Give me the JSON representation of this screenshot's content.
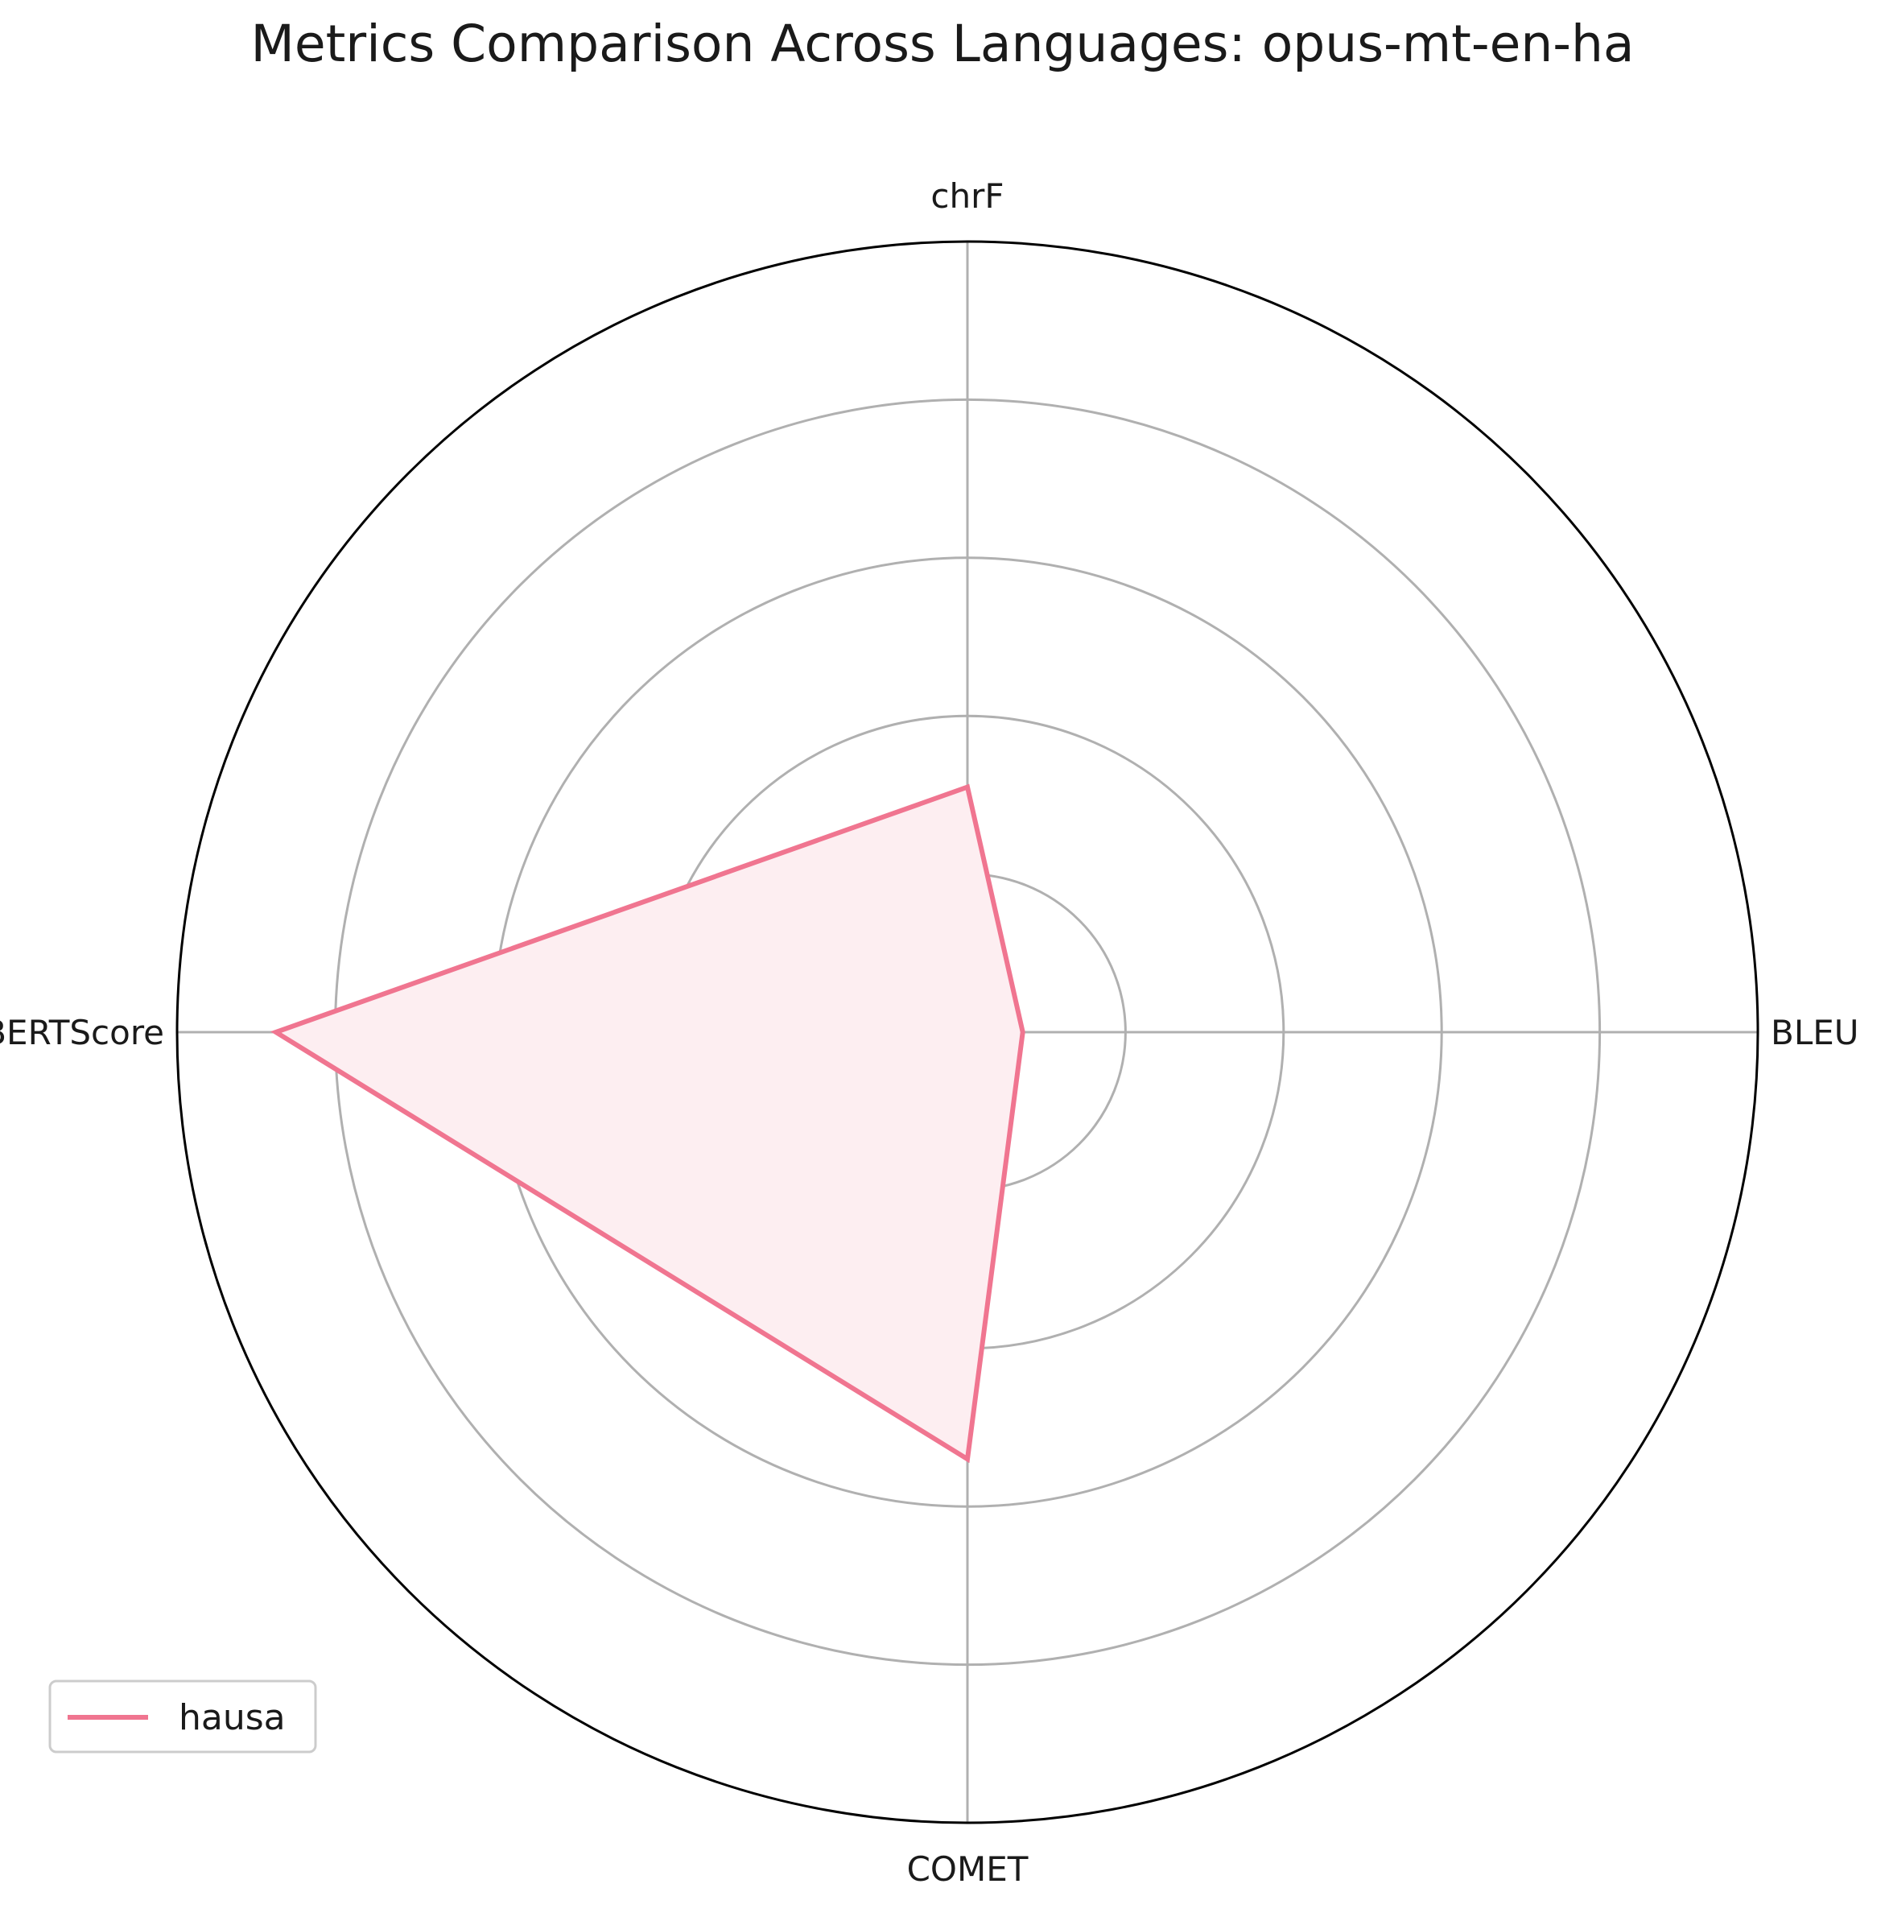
{
  "chart_data": {
    "type": "radar",
    "title": "Metrics Comparison Across Languages: opus-mt-en-ha",
    "axes": [
      "BLEU",
      "chrF",
      "BERTScore",
      "COMET"
    ],
    "rlim": [
      0,
      1.0
    ],
    "radial_gridlines": [
      0.2,
      0.4,
      0.6,
      0.8,
      1.0
    ],
    "grid": true,
    "radial_tick_labels_shown": false,
    "series": [
      {
        "name": "hausa",
        "values": [
          0.07,
          0.31,
          0.875,
          0.54
        ],
        "color": "#f07590"
      }
    ],
    "legend": {
      "position": "lower-left"
    },
    "colors": {
      "series_line": "#f07590",
      "series_fill": "#fdeef1",
      "grid": "#b0b0b0",
      "outer_frame": "#000000",
      "text": "#1a1a1a"
    }
  }
}
